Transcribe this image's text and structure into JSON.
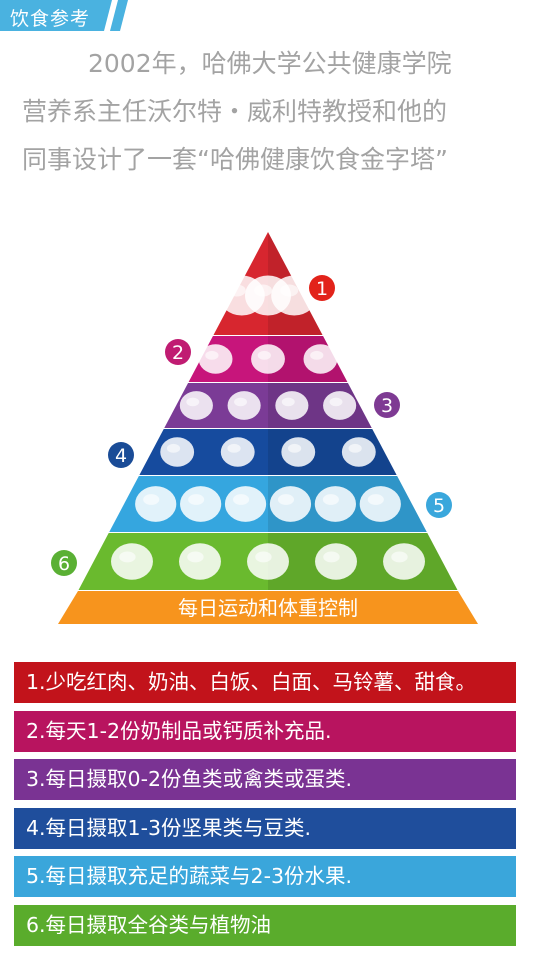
{
  "tag": {
    "label": "饮食参考",
    "color": "#4ab2e0"
  },
  "intro": {
    "lines": [
      "2002年，哈佛大学公共健康学院",
      "营养系主任沃尔特・威利特教授和他的",
      "同事设计了一套“哈佛健康饮食金字塔”"
    ]
  },
  "pyramid": {
    "base_label": "每日运动和体重控制",
    "base_color": "#f7941d",
    "levels": [
      {
        "number": "1",
        "color": "#d7262f",
        "badge_color": "#e2231a",
        "icons": [
          "red-meat-icon",
          "potato-icon",
          "pastry-icon"
        ]
      },
      {
        "number": "2",
        "color": "#c7157b",
        "badge_color": "#c01c72",
        "icons": [
          "milk-glass-icon",
          "cheese-icon",
          "brie-cheese-icon"
        ]
      },
      {
        "number": "3",
        "color": "#7b3b96",
        "badge_color": "#7e3a93",
        "icons": [
          "egg-icon",
          "shrimp-icon",
          "salmon-icon",
          "roast-chicken-icon"
        ]
      },
      {
        "number": "4",
        "color": "#164b9e",
        "badge_color": "#1a4c97",
        "icons": [
          "pea-pod-icon",
          "walnut-icon",
          "green-peas-icon",
          "red-beans-icon"
        ]
      },
      {
        "number": "5",
        "color": "#35a6df",
        "badge_color": "#3aa7dc",
        "icons": [
          "carrot-icon",
          "brussels-sprout-icon",
          "broccoli-icon",
          "tomato-icon",
          "banana-icon",
          "strawberry-icon"
        ]
      },
      {
        "number": "6",
        "color": "#6aba2e",
        "badge_color": "#5ab034",
        "icons": [
          "grain-pile-icon",
          "bread-icon",
          "red-pepper-icon",
          "oil-bottle-icon",
          "corn-icon"
        ]
      }
    ]
  },
  "rules": [
    {
      "text": "1.少吃红肉、奶油、白饭、白面、马铃薯、甜食。",
      "color": "#c2131b"
    },
    {
      "text": "2.每天1-2份奶制品或钙质补充品.",
      "color": "#b8145f"
    },
    {
      "text": "3.每日摄取0-2份鱼类或禽类或蛋类.",
      "color": "#7a3393"
    },
    {
      "text": "4.每日摄取1-3份坚果类与豆类.",
      "color": "#1f4e9c"
    },
    {
      "text": "5.每日摄取充足的蔬菜与2-3份水果.",
      "color": "#3aa6db"
    },
    {
      "text": "6.每日摄取全谷类与植物油",
      "color": "#5aac2c"
    }
  ]
}
